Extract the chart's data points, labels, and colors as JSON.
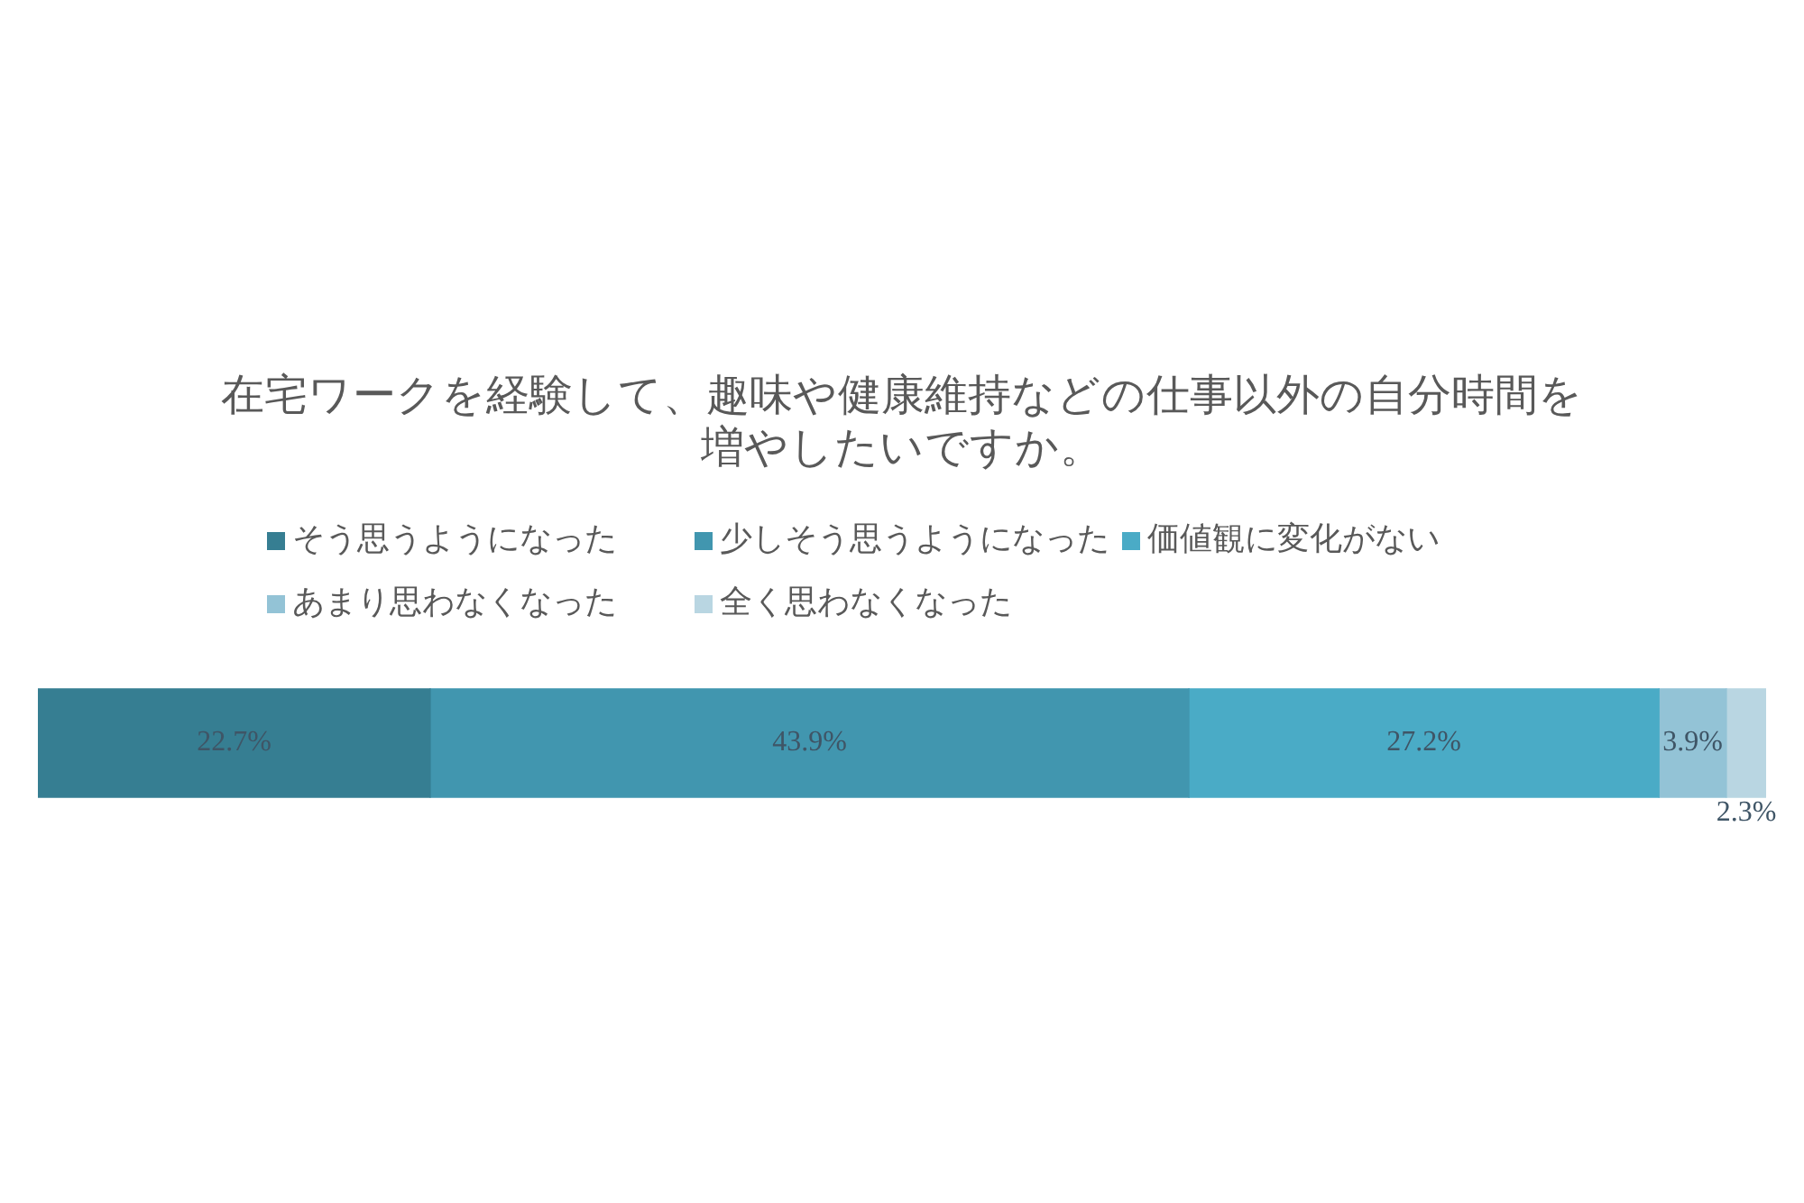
{
  "chart_data": {
    "type": "bar",
    "orientation": "horizontal",
    "stacked": true,
    "title": "在宅ワークを経験して、趣味や健康維持などの仕事以外の自分時間を増やしたいですか。",
    "categories": [
      null
    ],
    "series": [
      {
        "name": "そう思うようになった",
        "color": "#367e92",
        "values": [
          22.7
        ],
        "value_labels": [
          "22.7%"
        ]
      },
      {
        "name": "少しそう思うようになった",
        "color": "#4196af",
        "values": [
          43.9
        ],
        "value_labels": [
          "43.9%"
        ]
      },
      {
        "name": "価値観に変化がない",
        "color": "#4aabc6",
        "values": [
          27.2
        ],
        "value_labels": [
          "27.2%"
        ]
      },
      {
        "name": "あまり思わなくなった",
        "color": "#93c3d6",
        "values": [
          3.9
        ],
        "value_labels": [
          "3.9%"
        ]
      },
      {
        "name": "全く思わなくなった",
        "color": "#b9d6e2",
        "values": [
          2.3
        ],
        "value_labels": [
          "2.3%"
        ]
      }
    ],
    "xlim": [
      0,
      100
    ],
    "tick_labels": false,
    "legend": "top"
  }
}
